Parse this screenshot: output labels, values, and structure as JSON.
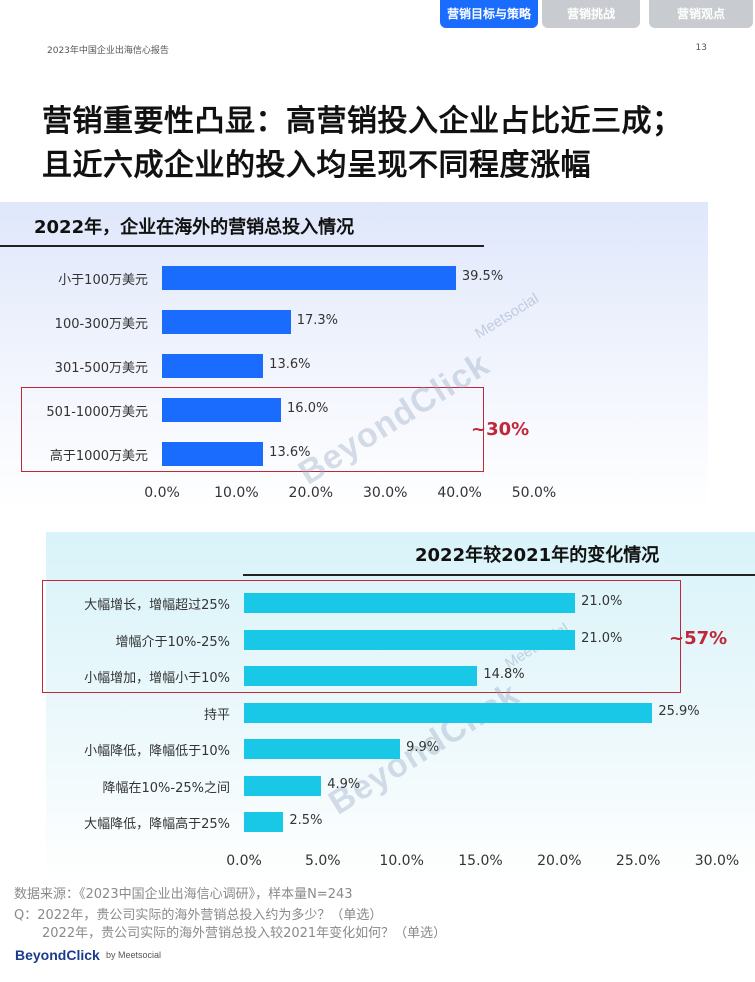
{
  "tabs": [
    {
      "label": "营销目标与策略",
      "active": true
    },
    {
      "label": "营销挑战",
      "active": false
    },
    {
      "label": "营销观点",
      "active": false
    }
  ],
  "header": {
    "report_name": "2023年中国企业出海信心报告",
    "page_number": "13"
  },
  "title": {
    "line1": "营销重要性凸显：高营销投入企业占比近三成；",
    "line2": "且近六成企业的投入均呈现不同程度涨幅"
  },
  "colors": {
    "bar_blue": "#1a6cff",
    "bar_cyan": "#19c8e6",
    "highlight_red": "#c0283a"
  },
  "watermark": {
    "brand": "BeyondClick",
    "partner": "Meetsocial",
    "by": "by"
  },
  "chart_data": [
    {
      "type": "bar",
      "orientation": "horizontal",
      "title": "2022年，企业在海外的营销总投入情况",
      "categories": [
        "小于100万美元",
        "100-300万美元",
        "301-500万美元",
        "501-1000万美元",
        "高于1000万美元"
      ],
      "values": [
        39.5,
        17.3,
        13.6,
        16.0,
        13.6
      ],
      "value_labels": [
        "39.5%",
        "17.3%",
        "13.6%",
        "16.0%",
        "13.6%"
      ],
      "xlim": [
        0,
        50
      ],
      "x_ticks": [
        "0.0%",
        "10.0%",
        "20.0%",
        "30.0%",
        "40.0%",
        "50.0%"
      ],
      "annotation": "~30%",
      "highlighted_categories": [
        "501-1000万美元",
        "高于1000万美元"
      ]
    },
    {
      "type": "bar",
      "orientation": "horizontal",
      "title": "2022年较2021年的变化情况",
      "categories": [
        "大幅增长，增幅超过25%",
        "增幅介于10%-25%",
        "小幅增加，增幅小于10%",
        "持平",
        "小幅降低，降幅低于10%",
        "降幅在10%-25%之间",
        "大幅降低，降幅高于25%"
      ],
      "values": [
        21.0,
        21.0,
        14.8,
        25.9,
        9.9,
        4.9,
        2.5
      ],
      "value_labels": [
        "21.0%",
        "21.0%",
        "14.8%",
        "25.9%",
        "9.9%",
        "4.9%",
        "2.5%"
      ],
      "xlim": [
        0,
        30
      ],
      "x_ticks": [
        "0.0%",
        "5.0%",
        "10.0%",
        "15.0%",
        "20.0%",
        "25.0%",
        "30.0%"
      ],
      "annotation": "~57%",
      "highlighted_categories": [
        "大幅增长，增幅超过25%",
        "增幅介于10%-25%",
        "小幅增加，增幅小于10%"
      ]
    }
  ],
  "footnotes": {
    "source": "数据来源：《2023中国企业出海信心调研》，样本量N=243",
    "q1": "Q：2022年，贵公司实际的海外营销总投入约为多少？（单选）",
    "q2": "2022年，贵公司实际的海外营销总投入较2021年变化如何？（单选）"
  },
  "footer_logo": {
    "brand": "BeyondClick",
    "partner": "by Meetsocial"
  }
}
